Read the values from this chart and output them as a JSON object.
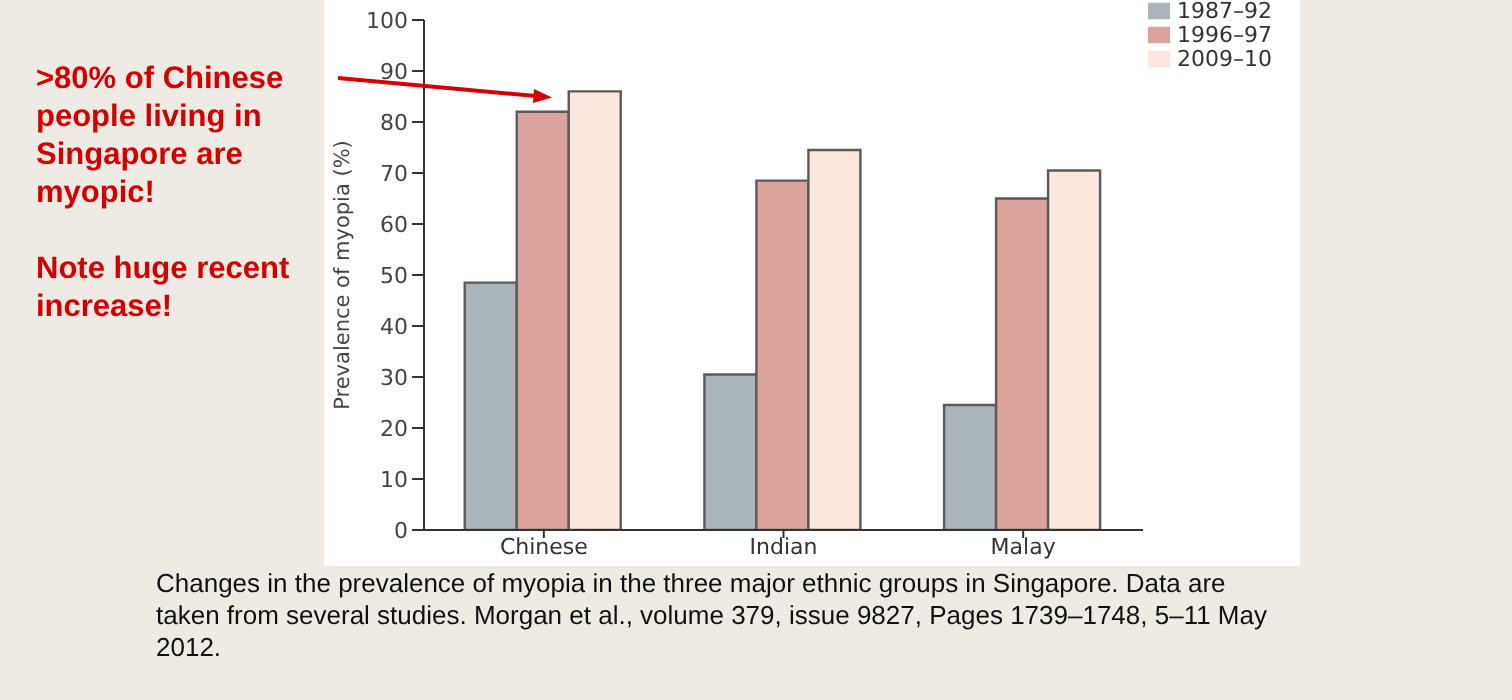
{
  "chart_data": {
    "type": "bar",
    "ylabel": "Prevalence of myopia (%)",
    "categories": [
      "Chinese",
      "Indian",
      "Malay"
    ],
    "series": [
      {
        "name": "1987–92",
        "color": "#aab4b9",
        "values": [
          48.5,
          30.5,
          24.5
        ]
      },
      {
        "name": "1996–97",
        "color": "#dba39c",
        "values": [
          82,
          68.5,
          65
        ]
      },
      {
        "name": "2009–10",
        "color": "#fde6dc",
        "values": [
          86,
          74.5,
          70.5
        ]
      }
    ],
    "ylim": [
      0,
      100
    ],
    "yticks": [
      0,
      10,
      20,
      30,
      40,
      50,
      60,
      70,
      80,
      90,
      100
    ],
    "grid": false,
    "legend": "top right",
    "annotations": [
      ">80% of Chinese people living in Singapore are myopic!",
      "Note huge recent increase!",
      "Changes in the prevalence of myopia in the three major ethnic groups in Singapore. Data are taken from several studies. Morgan et al., volume 379, issue 9827, Pages 1739–1748, 5–11 May 2012."
    ]
  }
}
